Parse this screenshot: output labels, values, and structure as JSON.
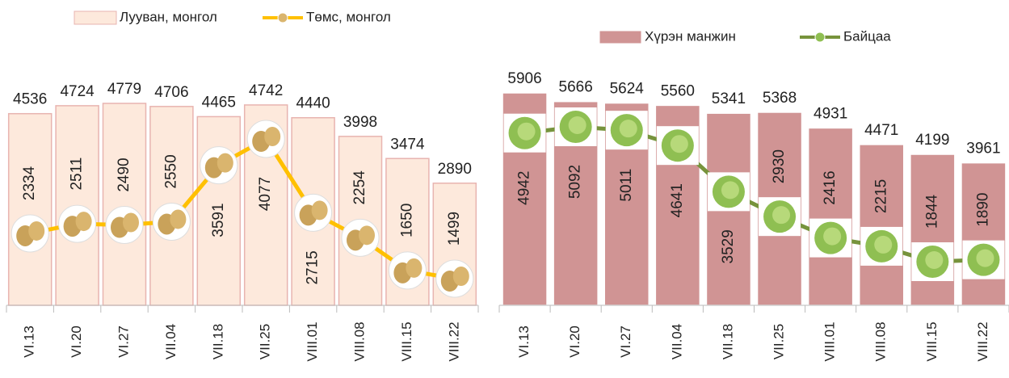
{
  "chart_data": [
    {
      "type": "combo",
      "categories": [
        "VI.13",
        "VI.20",
        "VI.27",
        "VII.04",
        "VII.18",
        "VII.25",
        "VIII.01",
        "VIII.08",
        "VIII.15",
        "VIII.22"
      ],
      "series": [
        {
          "name": "Лууван, монгол",
          "type": "bar",
          "color": "#fde9dc",
          "values": [
            4536,
            4724,
            4779,
            4706,
            4465,
            4742,
            4440,
            3998,
            3474,
            2890
          ]
        },
        {
          "name": "Төмс, монгол",
          "type": "line",
          "color": "#ffc000",
          "values": [
            2334,
            2511,
            2490,
            2550,
            3591,
            4077,
            2715,
            2254,
            1650,
            1499
          ]
        }
      ]
    },
    {
      "type": "combo",
      "categories": [
        "VI.13",
        "VI.20",
        "VI.27",
        "VII.04",
        "VII.18",
        "VII.25",
        "VIII.01",
        "VIII.08",
        "VIII.15",
        "VIII.22"
      ],
      "series": [
        {
          "name": "Хүрэн манжин",
          "type": "bar",
          "color": "#d09494",
          "values": [
            5906,
            5666,
            5624,
            5560,
            5341,
            5368,
            4931,
            4471,
            4199,
            3961
          ]
        },
        {
          "name": "Байцаа",
          "type": "line",
          "color": "#77933c",
          "values": [
            4942,
            5092,
            5011,
            4641,
            3529,
            2930,
            2416,
            2215,
            1844,
            1890
          ]
        }
      ]
    }
  ]
}
